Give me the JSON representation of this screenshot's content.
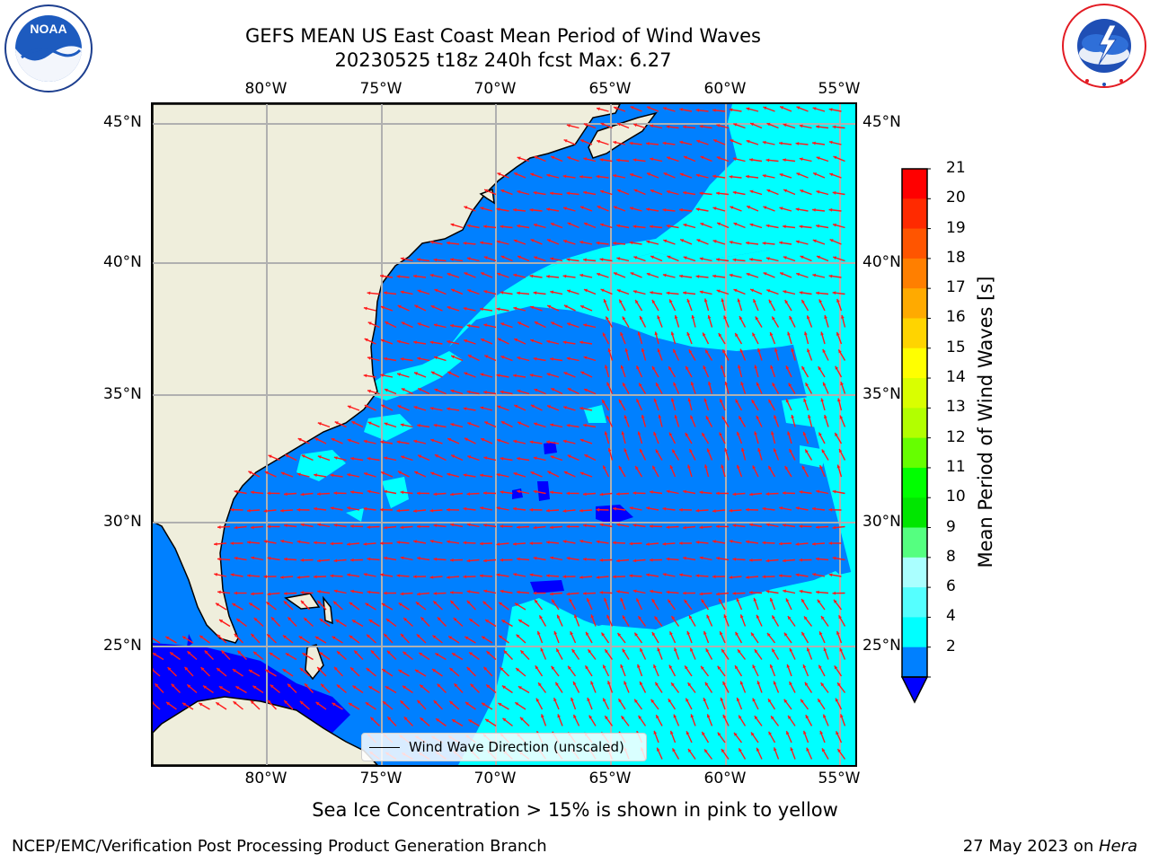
{
  "title": {
    "line1": "GEFS MEAN US East Coast Mean Period of Wind Waves",
    "line2": "20230525 t18z 240h fcst   Max: 6.27"
  },
  "logos": {
    "left": {
      "name": "noaa-logo",
      "text": "NOAA",
      "ring_text": "NATIONAL OCEANIC AND ATMOSPHERIC ADMINISTRATION · U.S. DEPARTMENT OF COMMERCE"
    },
    "right": {
      "name": "national-weather-service-logo",
      "ring_text": "NATIONAL WEATHER SERVICE"
    }
  },
  "map": {
    "projection": "equirectangular",
    "lon_range": [
      -85,
      -54.2
    ],
    "lat_range": [
      20.2,
      46
    ],
    "lon_ticks": [
      "80°W",
      "75°W",
      "70°W",
      "65°W",
      "60°W",
      "55°W"
    ],
    "lat_ticks": [
      "45°N",
      "40°N",
      "35°N",
      "30°N",
      "25°N"
    ],
    "grid": true,
    "land_color": "#efeedc",
    "arrow_color": "#ff1a1a",
    "legend": {
      "label": "Wind Wave Direction (unscaled)",
      "placement": "lower-center"
    }
  },
  "colorbar": {
    "label": "Mean Period of Wind Waves [s]",
    "ticks": [
      "21",
      "20",
      "19",
      "18",
      "17",
      "16",
      "15",
      "14",
      "13",
      "12",
      "11",
      "10",
      "9",
      "8",
      "6",
      "4",
      "2"
    ],
    "colors": [
      "#ff0000",
      "#ff2a00",
      "#ff5500",
      "#ff7f00",
      "#ffaa00",
      "#ffd400",
      "#ffff00",
      "#d9ff00",
      "#b2ff00",
      "#66ff00",
      "#00ff00",
      "#00e600",
      "#55ff80",
      "#aaffff",
      "#55ffff",
      "#00ffff",
      "#0080ff"
    ],
    "under_color": "#0000ff"
  },
  "footer": {
    "note": "Sea Ice Concentration > 15% is shown in pink to yellow",
    "left": "NCEP/EMC/Verification Post Processing Product Generation Branch",
    "right_prefix": "27 May 2023 on ",
    "right_host": "Hera"
  }
}
